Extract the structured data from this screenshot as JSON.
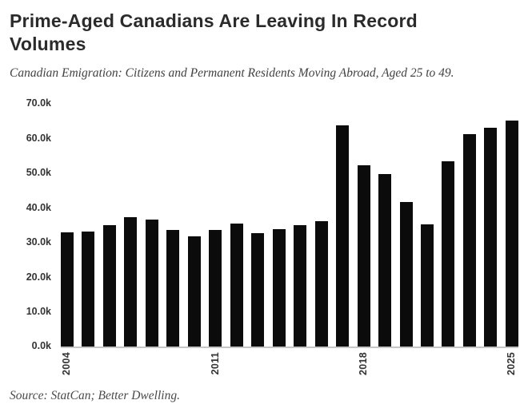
{
  "header": {
    "title": "Prime-Aged Canadians Are Leaving In Record Volumes",
    "subtitle": "Canadian Emigration: Citizens and Permanent Residents Moving Abroad, Aged 25 to 49."
  },
  "chart_data": {
    "type": "bar",
    "title": "Prime-Aged Canadians Are Leaving In Record Volumes",
    "subtitle": "Canadian Emigration: Citizens and Permanent Residents Moving Abroad, Aged 25 to 49.",
    "categories": [
      "2004",
      "2005",
      "2006",
      "2007",
      "2008",
      "2009",
      "2010",
      "2011",
      "2012",
      "2013",
      "2014",
      "2015",
      "2016",
      "2017",
      "2018",
      "2019",
      "2020",
      "2021",
      "2022",
      "2023",
      "2024",
      "2025"
    ],
    "values": [
      33000,
      33100,
      34900,
      37300,
      36500,
      33500,
      31700,
      33700,
      35400,
      32800,
      33800,
      35000,
      36100,
      63800,
      52300,
      49700,
      41600,
      35200,
      53300,
      61200,
      63000,
      65100
    ],
    "xlabel": "",
    "ylabel": "",
    "ylim": [
      0,
      70000
    ],
    "y_ticks": [
      0,
      10000,
      20000,
      30000,
      40000,
      50000,
      60000,
      70000
    ],
    "y_tick_labels": [
      "0.0k",
      "10.0k",
      "20.0k",
      "30.0k",
      "40.0k",
      "50.0k",
      "60.0k",
      "70.0k"
    ],
    "x_tick_labels": [
      "2004",
      "2011",
      "2018",
      "2025"
    ],
    "grid": false,
    "legend_position": "none",
    "bar_color": "#0b0b0b",
    "axis_line_color": "#c6c6c6"
  },
  "footer": {
    "source": "Source: StatCan; Better Dwelling."
  }
}
